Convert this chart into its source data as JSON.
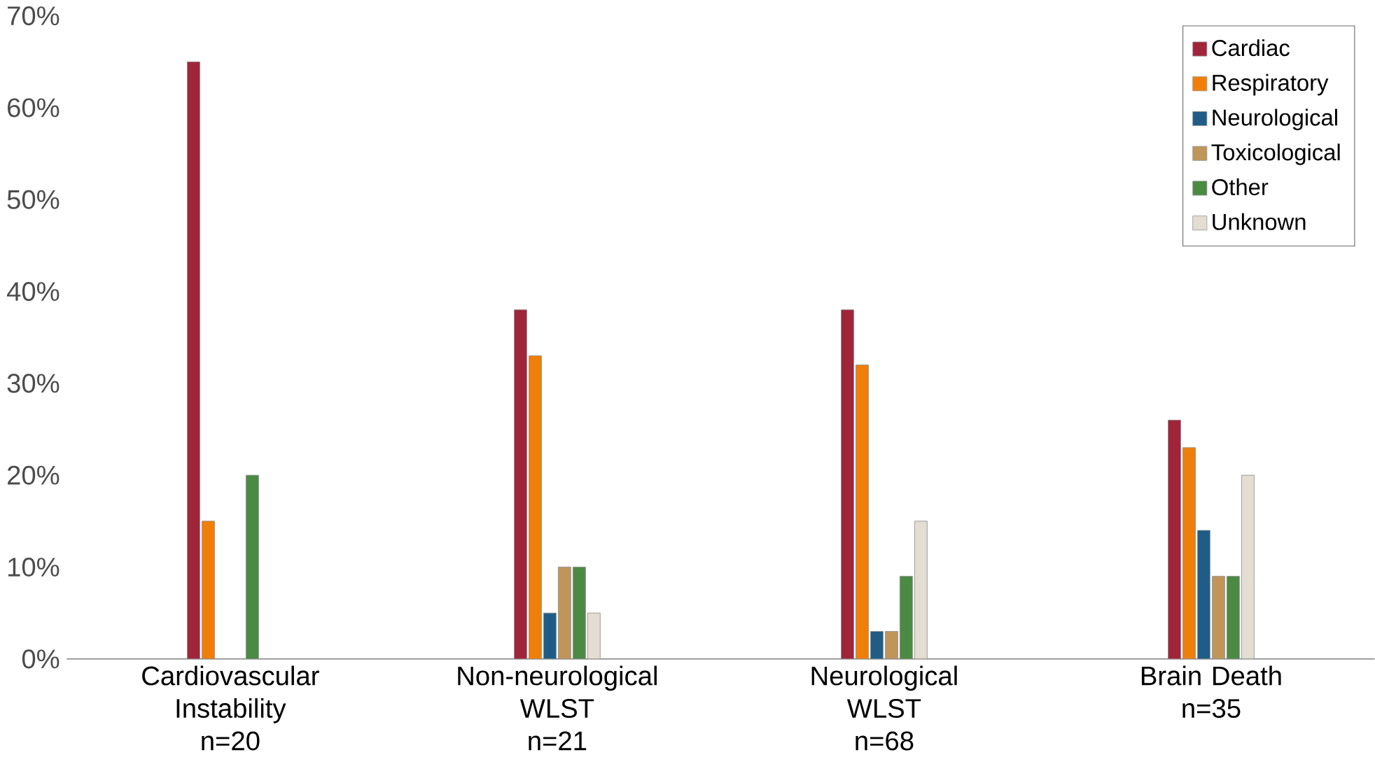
{
  "chart_data": {
    "type": "bar",
    "categories": [
      "Cardiovascular\nInstability\nn=20",
      "Non-neurological\nWLST\nn=21",
      "Neurological\nWLST\nn=68",
      "Brain Death\nn=35"
    ],
    "series": [
      {
        "name": "Cardiac",
        "color": "#a0243a",
        "values": [
          65,
          38,
          38,
          26
        ]
      },
      {
        "name": "Respiratory",
        "color": "#f07f09",
        "values": [
          15,
          33,
          32,
          23
        ]
      },
      {
        "name": "Neurological",
        "color": "#1f5d87",
        "values": [
          null,
          5,
          3,
          14
        ]
      },
      {
        "name": "Toxicological",
        "color": "#c0955a",
        "values": [
          null,
          10,
          3,
          9
        ]
      },
      {
        "name": "Other",
        "color": "#4a8a43",
        "values": [
          20,
          10,
          9,
          9
        ]
      },
      {
        "name": "Unknown",
        "color": "#e3ddd2",
        "values": [
          null,
          5,
          15,
          20
        ]
      }
    ],
    "ylim": [
      0,
      70
    ],
    "yticks": [
      {
        "value": 0,
        "label": "0%"
      },
      {
        "value": 10,
        "label": "10%"
      },
      {
        "value": 20,
        "label": "20%"
      },
      {
        "value": 30,
        "label": "30%"
      },
      {
        "value": 40,
        "label": "40%"
      },
      {
        "value": 50,
        "label": "50%"
      },
      {
        "value": 60,
        "label": "60%"
      },
      {
        "value": 70,
        "label": "70%"
      }
    ],
    "grid": false,
    "legend": "top right"
  }
}
